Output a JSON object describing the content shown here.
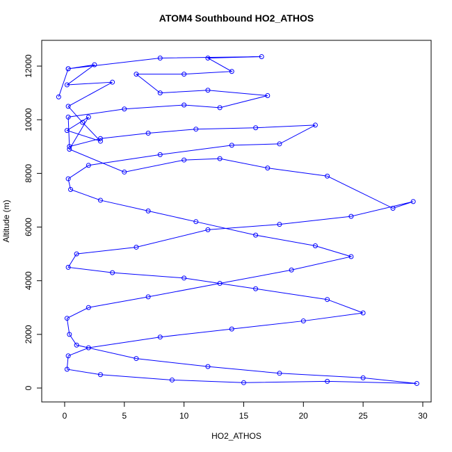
{
  "chart_data": {
    "type": "line",
    "title": "ATOM4 Southbound HO2_ATHOS",
    "x_label": "HO2_ATHOS",
    "y_label": "Altitude (m)",
    "series": [
      {
        "name": "HO2_ATHOS",
        "color": "#0000ff",
        "x": [
          -0.5,
          0.3,
          2.5,
          0.2,
          4,
          0.3,
          1.5,
          3,
          0.2,
          2,
          0.4,
          5,
          10,
          13,
          17,
          22,
          27.5,
          29.2,
          24,
          18,
          12,
          6,
          1,
          0.3,
          4,
          10,
          16,
          22,
          25,
          20,
          14,
          8,
          2,
          0.3,
          0.2,
          3,
          9,
          15,
          22,
          29.5,
          25,
          18,
          12,
          6,
          1,
          0.4,
          0.2,
          2,
          7,
          13,
          19,
          24,
          21,
          16,
          11,
          7,
          3,
          0.5,
          0.3,
          2,
          8,
          14,
          18,
          21,
          16,
          11,
          7,
          3,
          0.4,
          0.3,
          5,
          10,
          13,
          17,
          12,
          8,
          6,
          10,
          14,
          12,
          16.5,
          8,
          0.3
        ],
        "values": [
          10850,
          11900,
          12050,
          11300,
          11400,
          10500,
          9900,
          9200,
          9600,
          10100,
          8900,
          8050,
          8500,
          8550,
          8200,
          7900,
          6700,
          6950,
          6400,
          6100,
          5900,
          5250,
          5000,
          4500,
          4300,
          4100,
          3700,
          3300,
          2800,
          2500,
          2200,
          1900,
          1500,
          1200,
          700,
          500,
          300,
          200,
          250,
          170,
          380,
          550,
          800,
          1100,
          1600,
          2000,
          2600,
          3000,
          3400,
          3900,
          4400,
          4900,
          5300,
          5700,
          6200,
          6600,
          7000,
          7400,
          7800,
          8300,
          8700,
          9050,
          9100,
          9800,
          9700,
          9650,
          9500,
          9300,
          9000,
          10100,
          10400,
          10550,
          10450,
          10900,
          11100,
          11000,
          11700,
          11700,
          11800,
          12300,
          12350,
          12300,
          11900
        ]
      }
    ],
    "xlim": [
      -1.92,
      30.7
    ],
    "ylim": [
      -518,
      12960
    ],
    "xticks": [
      0,
      5,
      10,
      15,
      20,
      25,
      30
    ],
    "yticks": [
      0,
      2000,
      4000,
      6000,
      8000,
      10000,
      12000
    ]
  }
}
